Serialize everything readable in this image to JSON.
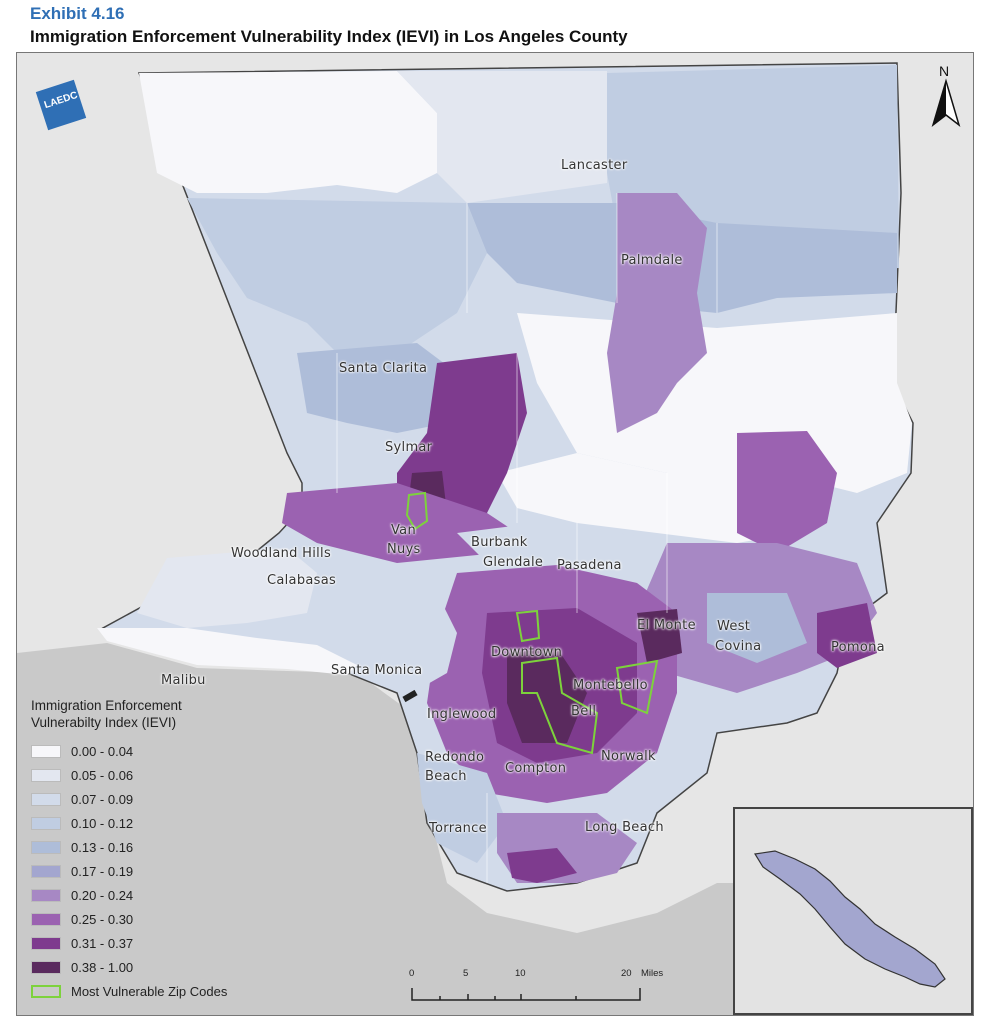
{
  "header": {
    "exhibit": "Exhibit 4.16",
    "title": "Immigration Enforcement Vulnerability Index (IEVI) in Los Angeles County"
  },
  "logo": {
    "text": "LAEDC",
    "color": "#2f6fb5"
  },
  "north_arrow": {
    "label": "N"
  },
  "places": {
    "lancaster": "Lancaster",
    "palmdale": "Palmdale",
    "santa_clarita": "Santa Clarita",
    "sylmar": "Sylmar",
    "van": "Van",
    "nuys": "Nuys",
    "burbank": "Burbank",
    "glendale": "Glendale",
    "pasadena": "Pasadena",
    "woodland_hills": "Woodland Hills",
    "calabasas": "Calabasas",
    "el_monte": "El Monte",
    "west": "West",
    "covina": "Covina",
    "pomona": "Pomona",
    "malibu": "Malibu",
    "santa_monica": "Santa Monica",
    "downtown": "Downtown",
    "montebello": "Montebello",
    "inglewood": "Inglewood",
    "bell": "Bell",
    "redondo": "Redondo",
    "beach": "Beach",
    "compton": "Compton",
    "norwalk": "Norwalk",
    "torrance": "Torrance",
    "long_beach": "Long Beach"
  },
  "legend": {
    "title_line1": "Immigration Enforcement",
    "title_line2": "Vulnerabilty Index (IEVI)",
    "classes": [
      {
        "label": "0.00 - 0.04",
        "color": "#f7f7fa"
      },
      {
        "label": "0.05 - 0.06",
        "color": "#e3e7f0"
      },
      {
        "label": "0.07 - 0.09",
        "color": "#d2dbea"
      },
      {
        "label": "0.10 - 0.12",
        "color": "#c0cde2"
      },
      {
        "label": "0.13 - 0.16",
        "color": "#aebdd9"
      },
      {
        "label": "0.17 - 0.19",
        "color": "#a3a6cf"
      },
      {
        "label": "0.20 - 0.24",
        "color": "#a788c4"
      },
      {
        "label": "0.25 - 0.30",
        "color": "#9b62b1"
      },
      {
        "label": "0.31 - 0.37",
        "color": "#7e3b8e"
      },
      {
        "label": "0.38 - 1.00",
        "color": "#5a2a5e"
      }
    ],
    "vulnerable_label": "Most Vulnerable Zip Codes",
    "vulnerable_color": "#7dd23c"
  },
  "scale": {
    "ticks": [
      "0",
      "5",
      "10",
      "20"
    ],
    "unit": "Miles"
  },
  "colors": {
    "ocean": "#c9c9c9",
    "land": "#e6e6e6",
    "inset_fill": "#a3a6cf"
  }
}
